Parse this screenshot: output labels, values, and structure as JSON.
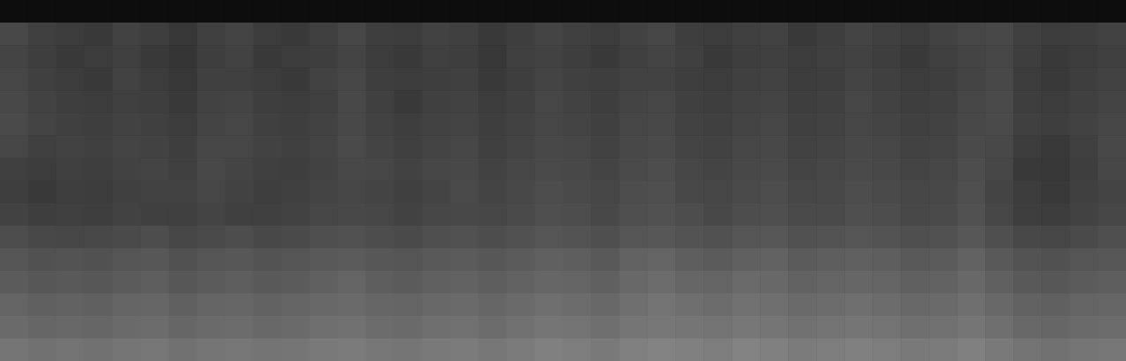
{
  "chart_data": {
    "type": "heatmap",
    "xlim": [
      0,
      40
    ],
    "ylim": [
      0,
      16
    ],
    "tick_labels": false,
    "color": "#ffffff",
    "color_range": [
      0,
      120
    ],
    "cells": [
      [
        6,
        6,
        6,
        6,
        6,
        6,
        6,
        6,
        6,
        6,
        6,
        6,
        6,
        6,
        6,
        6,
        6,
        6,
        6,
        6,
        6,
        6,
        6,
        6,
        6,
        6,
        6,
        6,
        6,
        6,
        6,
        6,
        6,
        6,
        6,
        6,
        6,
        6,
        6,
        6
      ],
      [
        34,
        30,
        28,
        27,
        31,
        29,
        26,
        30,
        32,
        28,
        27,
        30,
        33,
        29,
        28,
        31,
        30,
        27,
        29,
        32,
        30,
        28,
        31,
        33,
        29,
        28,
        30,
        31,
        27,
        29,
        32,
        30,
        28,
        31,
        33,
        34,
        30,
        28,
        29,
        31
      ],
      [
        32,
        29,
        27,
        28,
        30,
        27,
        25,
        29,
        31,
        27,
        28,
        29,
        32,
        28,
        27,
        30,
        29,
        26,
        30,
        31,
        29,
        27,
        30,
        32,
        30,
        27,
        29,
        30,
        28,
        30,
        31,
        29,
        27,
        30,
        32,
        33,
        29,
        27,
        28,
        30
      ],
      [
        33,
        30,
        28,
        27,
        31,
        28,
        26,
        30,
        30,
        28,
        27,
        31,
        33,
        29,
        28,
        29,
        30,
        27,
        29,
        32,
        30,
        29,
        31,
        31,
        29,
        28,
        30,
        31,
        28,
        29,
        32,
        30,
        28,
        29,
        32,
        34,
        28,
        27,
        29,
        31
      ],
      [
        34,
        31,
        29,
        28,
        30,
        29,
        27,
        31,
        32,
        29,
        28,
        30,
        34,
        30,
        27,
        30,
        31,
        28,
        30,
        33,
        31,
        29,
        32,
        33,
        30,
        29,
        31,
        32,
        29,
        30,
        33,
        31,
        29,
        30,
        33,
        35,
        29,
        28,
        30,
        32
      ],
      [
        35,
        32,
        30,
        29,
        31,
        30,
        28,
        32,
        33,
        30,
        29,
        31,
        34,
        31,
        29,
        31,
        32,
        29,
        31,
        33,
        32,
        30,
        33,
        34,
        31,
        30,
        32,
        33,
        30,
        31,
        33,
        32,
        30,
        31,
        34,
        35,
        30,
        29,
        31,
        33
      ],
      [
        33,
        30,
        31,
        30,
        32,
        31,
        29,
        33,
        33,
        31,
        30,
        32,
        35,
        32,
        30,
        32,
        33,
        30,
        32,
        34,
        33,
        31,
        34,
        35,
        32,
        31,
        33,
        34,
        31,
        32,
        34,
        33,
        31,
        32,
        35,
        34,
        28,
        27,
        30,
        34
      ],
      [
        30,
        28,
        30,
        29,
        31,
        32,
        30,
        34,
        32,
        30,
        29,
        31,
        34,
        33,
        31,
        33,
        34,
        31,
        33,
        35,
        34,
        32,
        35,
        36,
        33,
        32,
        34,
        35,
        32,
        33,
        35,
        34,
        32,
        33,
        36,
        33,
        27,
        26,
        29,
        33
      ],
      [
        29,
        27,
        29,
        28,
        30,
        31,
        31,
        33,
        31,
        29,
        30,
        32,
        33,
        32,
        30,
        32,
        35,
        32,
        34,
        36,
        35,
        33,
        36,
        37,
        34,
        33,
        35,
        36,
        33,
        34,
        36,
        35,
        33,
        34,
        37,
        32,
        28,
        27,
        30,
        32
      ],
      [
        31,
        29,
        30,
        29,
        31,
        30,
        30,
        32,
        30,
        30,
        31,
        33,
        34,
        33,
        31,
        33,
        34,
        33,
        35,
        37,
        36,
        34,
        37,
        38,
        36,
        34,
        36,
        37,
        35,
        35,
        37,
        36,
        34,
        35,
        38,
        33,
        29,
        28,
        31,
        33
      ],
      [
        36,
        34,
        33,
        34,
        35,
        36,
        33,
        35,
        36,
        34,
        35,
        37,
        38,
        36,
        35,
        37,
        38,
        36,
        38,
        40,
        39,
        37,
        40,
        41,
        39,
        38,
        40,
        41,
        38,
        39,
        40,
        39,
        37,
        38,
        41,
        37,
        34,
        33,
        35,
        37
      ],
      [
        40,
        38,
        39,
        38,
        40,
        41,
        38,
        40,
        41,
        39,
        40,
        42,
        43,
        41,
        40,
        42,
        43,
        41,
        43,
        45,
        44,
        42,
        46,
        47,
        44,
        43,
        45,
        46,
        43,
        44,
        45,
        44,
        42,
        43,
        46,
        42,
        39,
        38,
        40,
        41
      ],
      [
        43,
        41,
        42,
        41,
        43,
        44,
        41,
        43,
        44,
        42,
        43,
        45,
        47,
        44,
        43,
        45,
        46,
        44,
        46,
        48,
        47,
        45,
        49,
        51,
        48,
        47,
        50,
        49,
        46,
        47,
        48,
        47,
        45,
        46,
        49,
        45,
        42,
        41,
        43,
        44
      ],
      [
        47,
        45,
        46,
        45,
        47,
        48,
        45,
        47,
        48,
        46,
        47,
        49,
        50,
        48,
        47,
        49,
        50,
        48,
        50,
        52,
        51,
        49,
        52,
        54,
        52,
        51,
        53,
        52,
        50,
        51,
        52,
        51,
        49,
        50,
        52,
        49,
        46,
        45,
        47,
        48
      ],
      [
        50,
        48,
        49,
        48,
        50,
        51,
        48,
        50,
        51,
        49,
        50,
        52,
        53,
        51,
        50,
        52,
        53,
        51,
        53,
        55,
        54,
        52,
        55,
        56,
        55,
        54,
        56,
        55,
        53,
        54,
        55,
        54,
        52,
        53,
        55,
        52,
        49,
        48,
        50,
        51
      ],
      [
        55,
        53,
        54,
        53,
        55,
        56,
        53,
        55,
        56,
        54,
        55,
        57,
        58,
        56,
        55,
        57,
        58,
        56,
        58,
        60,
        59,
        57,
        60,
        61,
        60,
        59,
        61,
        60,
        58,
        59,
        60,
        59,
        57,
        58,
        60,
        57,
        54,
        53,
        55,
        56
      ]
    ]
  }
}
